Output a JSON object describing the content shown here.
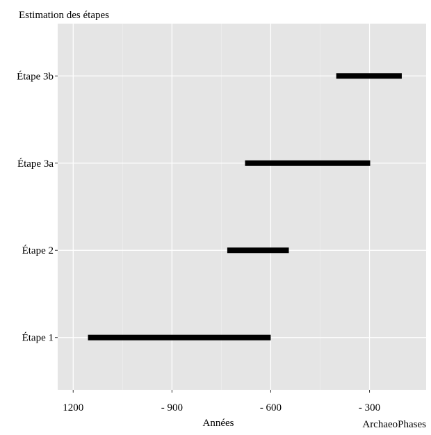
{
  "chart_data": {
    "type": "range-bar",
    "title": "Estimation des étapes",
    "xlabel": "Années",
    "ylabel": "",
    "caption": "ArchaeoPhases",
    "x_ticks": [
      {
        "value": -1200,
        "label": "1200"
      },
      {
        "value": -900,
        "label": "- 900"
      },
      {
        "value": -600,
        "label": "- 600"
      },
      {
        "value": -300,
        "label": "- 300"
      }
    ],
    "xlim": [
      -1247,
      -128
    ],
    "grid": true,
    "categories": [
      "Étape 1",
      "Étape 2",
      "Étape 3a",
      "Étape 3b"
    ],
    "intervals": [
      {
        "category": "Étape 1",
        "start": -1155,
        "end": -600
      },
      {
        "category": "Étape 2",
        "start": -732,
        "end": -545
      },
      {
        "category": "Étape 3a",
        "start": -678,
        "end": -298
      },
      {
        "category": "Étape 3b",
        "start": -401,
        "end": -202
      }
    ],
    "colors": {
      "panel": "#e5e5e5",
      "grid_major": "#ffffff",
      "grid_minor": "#f2f2f2",
      "bar": "#000000",
      "tick": "#333333"
    }
  }
}
